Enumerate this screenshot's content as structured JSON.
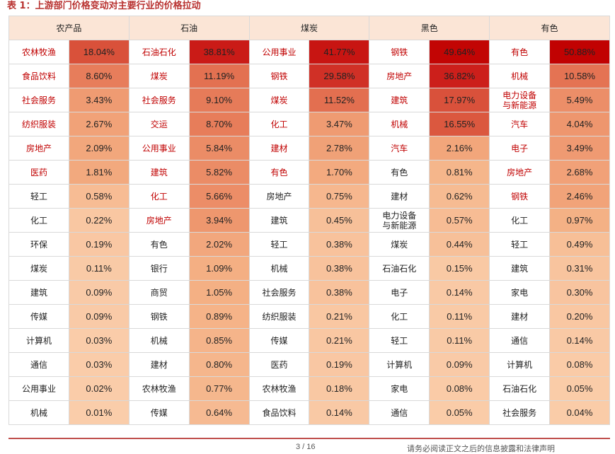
{
  "title": "表 1：上游部门价格变动对主要行业的价格拉动",
  "headers": [
    "农产品",
    "石油",
    "煤炭",
    "黑色",
    "有色"
  ],
  "rows": [
    [
      [
        "农林牧渔",
        "18.04%"
      ],
      [
        "石油石化",
        "38.81%"
      ],
      [
        "公用事业",
        "41.77%"
      ],
      [
        "钢铁",
        "49.64%"
      ],
      [
        "有色",
        "50.88%"
      ]
    ],
    [
      [
        "食品饮料",
        "8.60%"
      ],
      [
        "煤炭",
        "11.19%"
      ],
      [
        "钢铁",
        "29.58%"
      ],
      [
        "房地产",
        "36.82%"
      ],
      [
        "机械",
        "10.58%"
      ]
    ],
    [
      [
        "社会服务",
        "3.43%"
      ],
      [
        "社会服务",
        "9.10%"
      ],
      [
        "煤炭",
        "11.52%"
      ],
      [
        "建筑",
        "17.97%"
      ],
      [
        "电力设备与新能源",
        "5.49%"
      ]
    ],
    [
      [
        "纺织服装",
        "2.67%"
      ],
      [
        "交运",
        "8.70%"
      ],
      [
        "化工",
        "3.47%"
      ],
      [
        "机械",
        "16.55%"
      ],
      [
        "汽车",
        "4.04%"
      ]
    ],
    [
      [
        "房地产",
        "2.09%"
      ],
      [
        "公用事业",
        "5.84%"
      ],
      [
        "建材",
        "2.78%"
      ],
      [
        "汽车",
        "2.16%"
      ],
      [
        "电子",
        "3.49%"
      ]
    ],
    [
      [
        "医药",
        "1.81%"
      ],
      [
        "建筑",
        "5.82%"
      ],
      [
        "有色",
        "1.70%"
      ],
      [
        "有色",
        "0.81%"
      ],
      [
        "房地产",
        "2.68%"
      ]
    ],
    [
      [
        "轻工",
        "0.58%"
      ],
      [
        "化工",
        "5.66%"
      ],
      [
        "房地产",
        "0.75%"
      ],
      [
        "建材",
        "0.62%"
      ],
      [
        "钢铁",
        "2.46%"
      ]
    ],
    [
      [
        "化工",
        "0.22%"
      ],
      [
        "房地产",
        "3.94%"
      ],
      [
        "建筑",
        "0.45%"
      ],
      [
        "电力设备与新能源",
        "0.57%"
      ],
      [
        "化工",
        "0.97%"
      ]
    ],
    [
      [
        "环保",
        "0.19%"
      ],
      [
        "有色",
        "2.02%"
      ],
      [
        "轻工",
        "0.38%"
      ],
      [
        "煤炭",
        "0.44%"
      ],
      [
        "轻工",
        "0.49%"
      ]
    ],
    [
      [
        "煤炭",
        "0.11%"
      ],
      [
        "银行",
        "1.09%"
      ],
      [
        "机械",
        "0.38%"
      ],
      [
        "石油石化",
        "0.15%"
      ],
      [
        "建筑",
        "0.31%"
      ]
    ],
    [
      [
        "建筑",
        "0.09%"
      ],
      [
        "商贸",
        "1.05%"
      ],
      [
        "社会服务",
        "0.38%"
      ],
      [
        "电子",
        "0.14%"
      ],
      [
        "家电",
        "0.30%"
      ]
    ],
    [
      [
        "传媒",
        "0.09%"
      ],
      [
        "钢铁",
        "0.89%"
      ],
      [
        "纺织服装",
        "0.21%"
      ],
      [
        "化工",
        "0.11%"
      ],
      [
        "建材",
        "0.20%"
      ]
    ],
    [
      [
        "计算机",
        "0.03%"
      ],
      [
        "机械",
        "0.85%"
      ],
      [
        "传媒",
        "0.21%"
      ],
      [
        "轻工",
        "0.11%"
      ],
      [
        "通信",
        "0.14%"
      ]
    ],
    [
      [
        "通信",
        "0.03%"
      ],
      [
        "建材",
        "0.80%"
      ],
      [
        "医药",
        "0.19%"
      ],
      [
        "计算机",
        "0.09%"
      ],
      [
        "计算机",
        "0.08%"
      ]
    ],
    [
      [
        "公用事业",
        "0.02%"
      ],
      [
        "农林牧渔",
        "0.77%"
      ],
      [
        "农林牧渔",
        "0.18%"
      ],
      [
        "家电",
        "0.08%"
      ],
      [
        "石油石化",
        "0.05%"
      ]
    ],
    [
      [
        "机械",
        "0.01%"
      ],
      [
        "传媒",
        "0.64%"
      ],
      [
        "食品饮料",
        "0.14%"
      ],
      [
        "通信",
        "0.05%"
      ],
      [
        "社会服务",
        "0.04%"
      ]
    ]
  ],
  "red_rows_per_col": [
    6,
    8,
    6,
    5,
    7
  ],
  "colors": {
    "title": "#b8312f",
    "header_bg": "#fbe5d6",
    "red_text": "#c00000",
    "footer_line": "#c0504d"
  },
  "footer": {
    "page": "3 / 16",
    "disclaimer": "请务必阅读正文之后的信息披露和法律声明"
  }
}
